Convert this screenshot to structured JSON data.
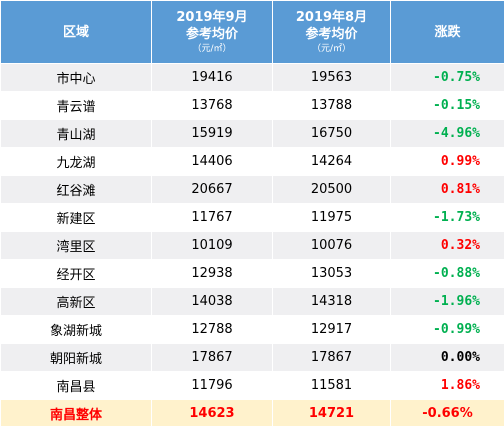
{
  "headers": {
    "region": "区域",
    "sep": {
      "line1": "2019年9月",
      "line2": "参考均价",
      "unit": "（元/㎡）"
    },
    "aug": {
      "line1": "2019年8月",
      "line2": "参考均价",
      "unit": "（元/㎡）"
    },
    "change": "涨跌"
  },
  "colors": {
    "header_bg": "#5a9bd5",
    "row_alt_bg": "#efeff1",
    "rise": "#ff0000",
    "fall": "#00b050",
    "flat": "#000000",
    "total_bg": "#fff2cc",
    "total_text": "#ff0000"
  },
  "rows": [
    {
      "region": "市中心",
      "sep": "19416",
      "aug": "19563",
      "change": "-0.75%",
      "trend": "fall"
    },
    {
      "region": "青云谱",
      "sep": "13768",
      "aug": "13788",
      "change": "-0.15%",
      "trend": "fall"
    },
    {
      "region": "青山湖",
      "sep": "15919",
      "aug": "16750",
      "change": "-4.96%",
      "trend": "fall"
    },
    {
      "region": "九龙湖",
      "sep": "14406",
      "aug": "14264",
      "change": "0.99%",
      "trend": "rise"
    },
    {
      "region": "红谷滩",
      "sep": "20667",
      "aug": "20500",
      "change": "0.81%",
      "trend": "rise"
    },
    {
      "region": "新建区",
      "sep": "11767",
      "aug": "11975",
      "change": "-1.73%",
      "trend": "fall"
    },
    {
      "region": "湾里区",
      "sep": "10109",
      "aug": "10076",
      "change": "0.32%",
      "trend": "rise"
    },
    {
      "region": "经开区",
      "sep": "12938",
      "aug": "13053",
      "change": "-0.88%",
      "trend": "fall"
    },
    {
      "region": "高新区",
      "sep": "14038",
      "aug": "14318",
      "change": "-1.96%",
      "trend": "fall"
    },
    {
      "region": "象湖新城",
      "sep": "12788",
      "aug": "12917",
      "change": "-0.99%",
      "trend": "fall"
    },
    {
      "region": "朝阳新城",
      "sep": "17867",
      "aug": "17867",
      "change": "0.00%",
      "trend": "flat"
    },
    {
      "region": "南昌县",
      "sep": "11796",
      "aug": "11581",
      "change": "1.86%",
      "trend": "rise"
    }
  ],
  "total": {
    "region": "南昌整体",
    "sep": "14623",
    "aug": "14721",
    "change": "-0.66%"
  }
}
